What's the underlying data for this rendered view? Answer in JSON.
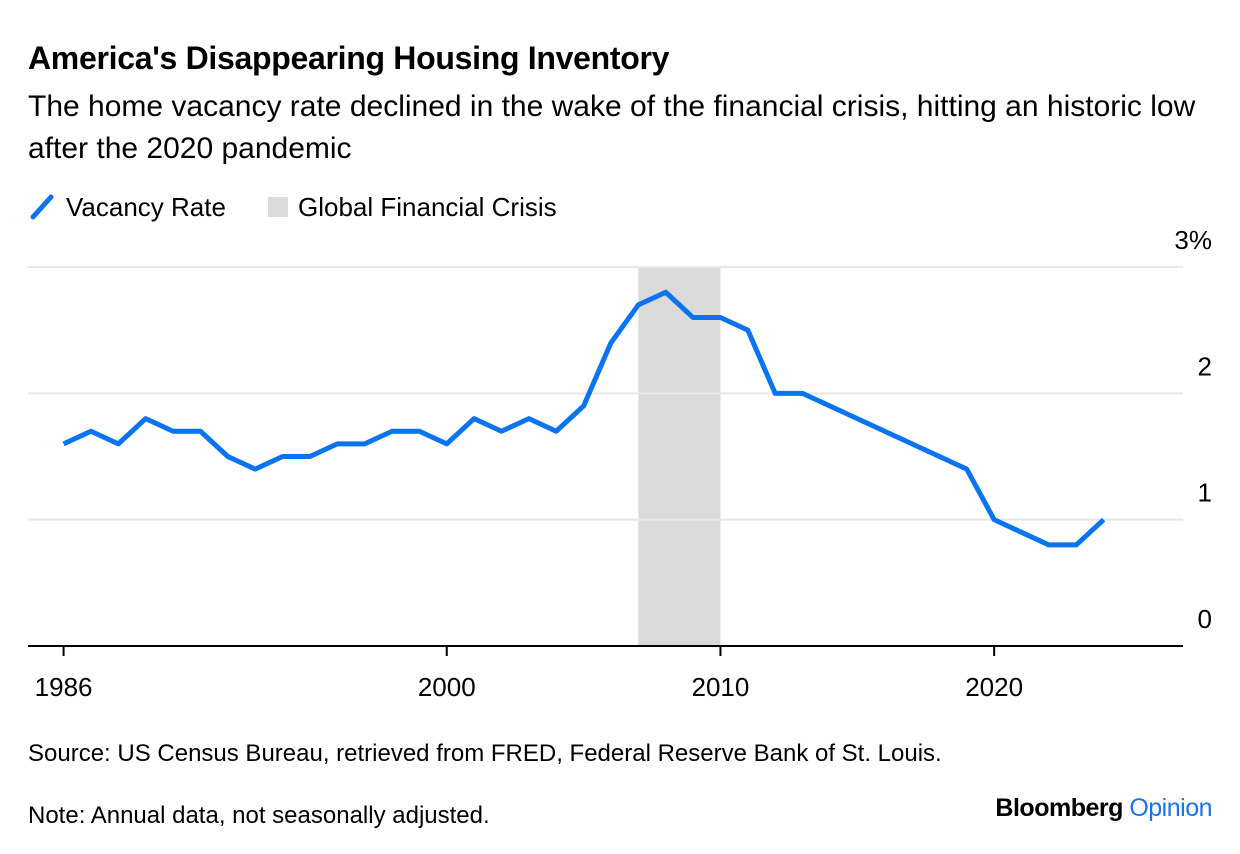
{
  "chart_data": {
    "type": "line",
    "title": "America's Disappearing Housing Inventory",
    "subtitle": "The home vacancy rate declined in the wake of the financial crisis, hitting an historic low after the 2020 pandemic",
    "x": [
      1986,
      1987,
      1988,
      1989,
      1990,
      1991,
      1992,
      1993,
      1994,
      1995,
      1996,
      1997,
      1998,
      1999,
      2000,
      2001,
      2002,
      2003,
      2004,
      2005,
      2006,
      2007,
      2008,
      2009,
      2010,
      2011,
      2012,
      2013,
      2014,
      2015,
      2016,
      2017,
      2018,
      2019,
      2020,
      2021,
      2022,
      2023,
      2024
    ],
    "series": [
      {
        "name": "Vacancy Rate",
        "color": "#0a74f0",
        "values": [
          1.6,
          1.7,
          1.6,
          1.8,
          1.7,
          1.7,
          1.5,
          1.4,
          1.5,
          1.5,
          1.6,
          1.6,
          1.7,
          1.7,
          1.6,
          1.8,
          1.7,
          1.8,
          1.7,
          1.9,
          2.4,
          2.7,
          2.8,
          2.6,
          2.6,
          2.5,
          2.0,
          2.0,
          1.9,
          1.8,
          1.7,
          1.6,
          1.5,
          1.4,
          1.0,
          0.9,
          0.8,
          0.8,
          1.0
        ]
      }
    ],
    "shaded": {
      "name": "Global Financial Crisis",
      "start": 2007,
      "end": 2010,
      "color": "#dadada"
    },
    "xlim": [
      1984.7,
      2026.9
    ],
    "xticks": [
      1986,
      2000,
      2010,
      2020
    ],
    "ylim": [
      0,
      3
    ],
    "yticks": [
      0,
      1,
      2,
      {
        "value": 3,
        "label": "3%"
      }
    ],
    "grid": true,
    "source": "Source: US Census Bureau, retrieved from FRED, Federal Reserve Bank of St. Louis.",
    "note": "Note: Annual data, not seasonally adjusted.",
    "brand": {
      "name": "Bloomberg",
      "section": "Opinion"
    }
  }
}
